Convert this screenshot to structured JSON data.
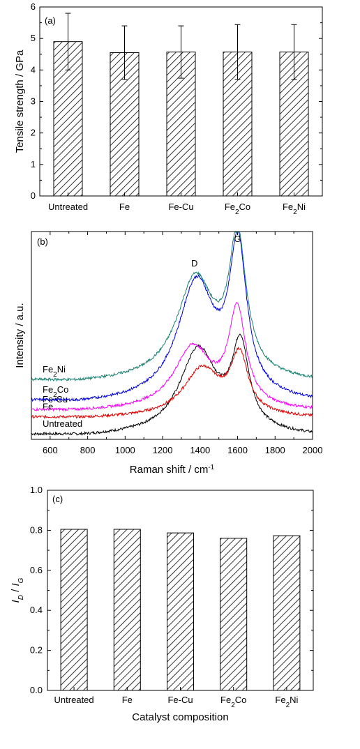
{
  "chart_data": [
    {
      "panel": "(a)",
      "type": "bar",
      "categories": [
        "Untreated",
        "Fe",
        "Fe-Cu",
        "Fe2Co",
        "Fe2Ni"
      ],
      "category_labels": [
        {
          "base": "Untreated",
          "sub": "",
          "tail": ""
        },
        {
          "base": "Fe",
          "sub": "",
          "tail": ""
        },
        {
          "base": "Fe-Cu",
          "sub": "",
          "tail": ""
        },
        {
          "base": "Fe",
          "sub": "2",
          "tail": "Co"
        },
        {
          "base": "Fe",
          "sub": "2",
          "tail": "Ni"
        }
      ],
      "values": [
        4.9,
        4.55,
        4.57,
        4.57,
        4.57
      ],
      "error": [
        0.9,
        0.85,
        0.83,
        0.87,
        0.87
      ],
      "ylabel": "Tensile strength / GPa",
      "xlabel": "",
      "ylim": [
        0,
        6
      ],
      "yticks": [
        "0",
        "1",
        "2",
        "3",
        "4",
        "5",
        "6"
      ],
      "fill": "hatch"
    },
    {
      "panel": "(b)",
      "type": "line",
      "xlabel": {
        "base": "Raman shift / cm",
        "sup": "-1"
      },
      "ylabel": "Intensity / a.u.",
      "xlim": [
        500,
        2000
      ],
      "xticks": [
        "600",
        "800",
        "1000",
        "1200",
        "1400",
        "1600",
        "1800",
        "2000"
      ],
      "annotations": [
        "D",
        "G"
      ],
      "series": [
        {
          "name": "Untreated",
          "label": {
            "base": "Untreated",
            "sub": "",
            "tail": ""
          },
          "color": "#000000",
          "offset": 0.0,
          "baseline_left": 0.0,
          "d_center": 1390,
          "d_height": 0.78,
          "g_center": 1615,
          "g_height": 0.77,
          "valley": 0.62
        },
        {
          "name": "Fe",
          "label": {
            "base": "Fe",
            "sub": "",
            "tail": ""
          },
          "color": "#e00000",
          "offset": 0.16,
          "baseline_left": 0.0,
          "d_center": 1410,
          "d_height": 0.44,
          "g_center": 1610,
          "g_height": 0.53,
          "valley": 0.37
        },
        {
          "name": "Fe-Cu",
          "label": {
            "base": "Fe-Cu",
            "sub": "",
            "tail": ""
          },
          "color": "#ff00ff",
          "offset": 0.23,
          "baseline_left": 0.0,
          "d_center": 1360,
          "d_height": 0.57,
          "g_center": 1598,
          "g_height": 0.89,
          "valley": 0.13
        },
        {
          "name": "Fe2Co",
          "label": {
            "base": "Fe",
            "sub": "2",
            "tail": "Co"
          },
          "color": "#0000dd",
          "offset": 0.32,
          "baseline_left": 0.0,
          "d_center": 1380,
          "d_height": 1.08,
          "g_center": 1602,
          "g_height": 1.35,
          "valley": 0.73
        },
        {
          "name": "Fe2Ni",
          "label": {
            "base": "Fe",
            "sub": "2",
            "tail": "Ni"
          },
          "color": "#1a8070",
          "offset": 0.51,
          "baseline_left": 0.0,
          "d_center": 1375,
          "d_height": 0.93,
          "g_center": 1600,
          "g_height": 1.26,
          "valley": 0.75
        }
      ]
    },
    {
      "panel": "(c)",
      "type": "bar",
      "categories": [
        "Untreated",
        "Fe",
        "Fe-Cu",
        "Fe2Co",
        "Fe2Ni"
      ],
      "category_labels": [
        {
          "base": "Untreated",
          "sub": "",
          "tail": ""
        },
        {
          "base": "Fe",
          "sub": "",
          "tail": ""
        },
        {
          "base": "Fe-Cu",
          "sub": "",
          "tail": ""
        },
        {
          "base": "Fe",
          "sub": "2",
          "tail": "Co"
        },
        {
          "base": "Fe",
          "sub": "2",
          "tail": "Ni"
        }
      ],
      "values": [
        0.805,
        0.805,
        0.787,
        0.76,
        0.773
      ],
      "ylabel": {
        "a": "I",
        "a_sub": "D",
        "sep": " / ",
        "b": "I",
        "b_sub": "G"
      },
      "xlabel": "Catalyst composition",
      "ylim": [
        0,
        1.0
      ],
      "yticks": [
        "0.0",
        "0.2",
        "0.4",
        "0.6",
        "0.8",
        "1.0"
      ],
      "fill": "hatch"
    }
  ]
}
